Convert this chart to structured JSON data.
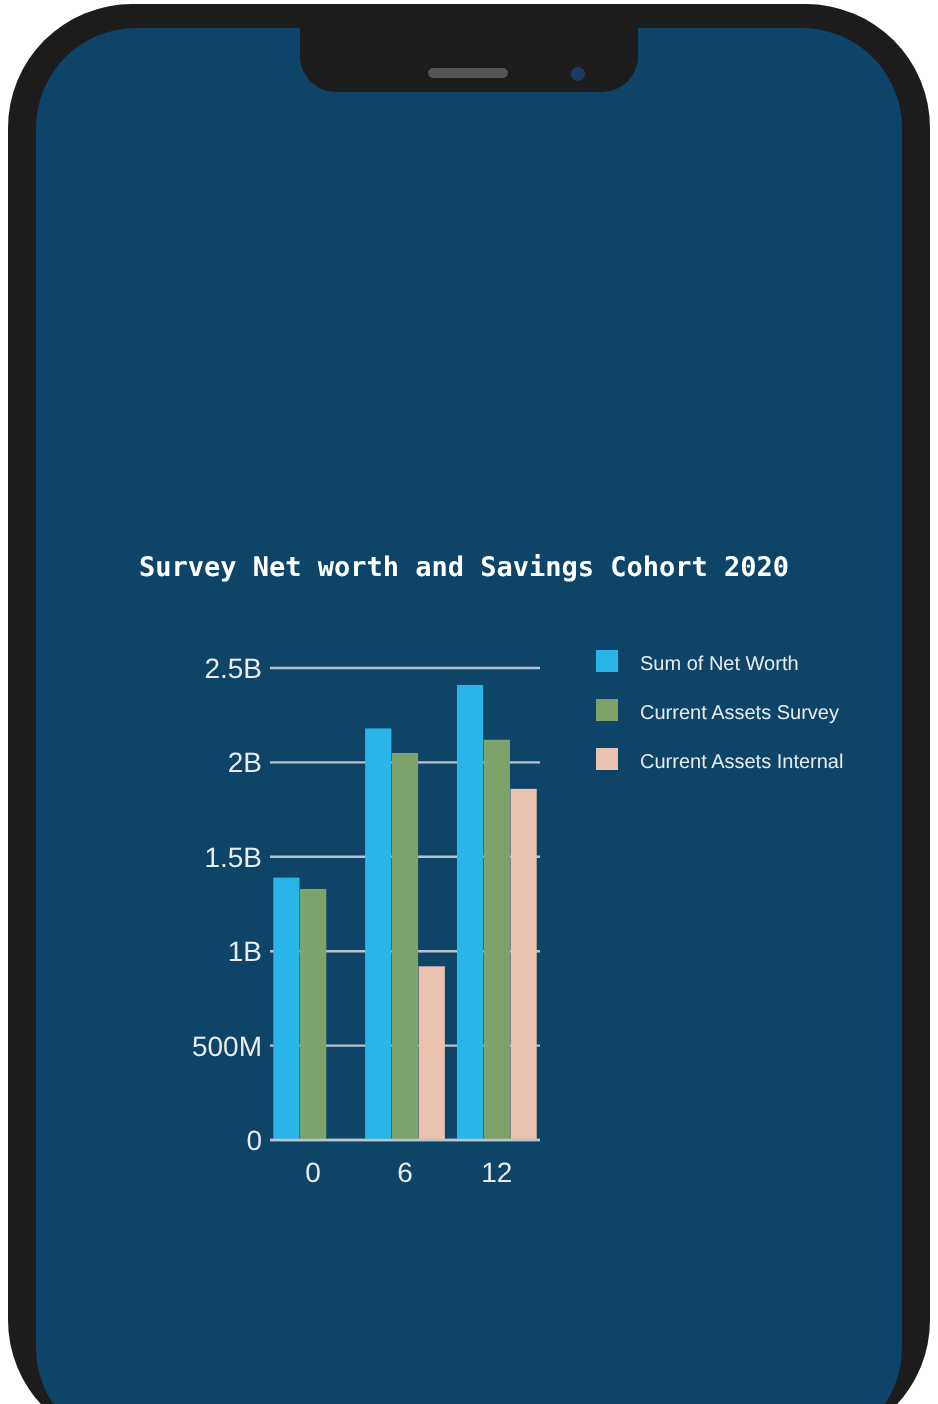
{
  "chart_data": {
    "type": "bar",
    "title": "Survey Net worth and Savings Cohort 2020",
    "categories": [
      "0",
      "6",
      "12"
    ],
    "series": [
      {
        "name": "Sum of Net Worth",
        "color": "#29b5e8",
        "values": [
          1390000000,
          2180000000,
          2410000000
        ]
      },
      {
        "name": "Current Assets Survey",
        "color": "#7ea36a",
        "values": [
          1330000000,
          2050000000,
          2120000000
        ]
      },
      {
        "name": "Current Assets Internal",
        "color": "#e9c2b0",
        "values": [
          null,
          920000000,
          1860000000
        ]
      }
    ],
    "ylim": [
      0,
      2500000000
    ],
    "yticks": [
      {
        "value": 0,
        "label": "0"
      },
      {
        "value": 500000000,
        "label": "500M"
      },
      {
        "value": 1000000000,
        "label": "1B"
      },
      {
        "value": 1500000000,
        "label": "1.5B"
      },
      {
        "value": 2000000000,
        "label": "2B"
      },
      {
        "value": 2500000000,
        "label": "2.5B"
      }
    ],
    "grid": "y",
    "legend": "right"
  }
}
